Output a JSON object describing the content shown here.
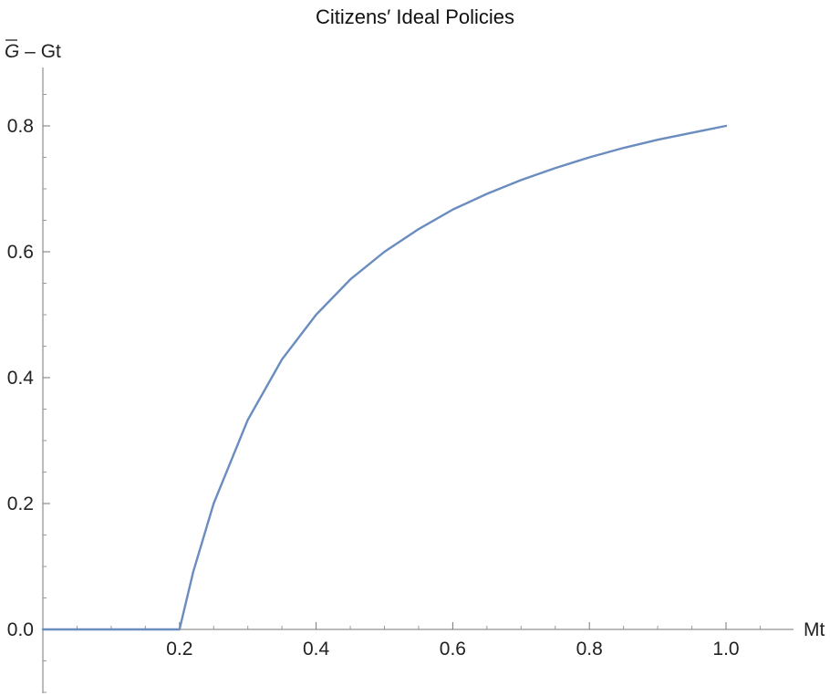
{
  "chart_data": {
    "type": "line",
    "title": "Citizens′ Ideal Policies",
    "xlabel": "Mt",
    "ylabel": {
      "symbol": "G",
      "suffix": " – Gt"
    },
    "xlim": [
      0,
      1.1
    ],
    "ylim": [
      -0.1,
      0.9
    ],
    "x_ticks": [
      0.2,
      0.4,
      0.6,
      0.8,
      1.0
    ],
    "x_tick_labels": [
      "0.2",
      "0.4",
      "0.6",
      "0.8",
      "1.0"
    ],
    "y_ticks": [
      0.0,
      0.2,
      0.4,
      0.6,
      0.8
    ],
    "y_tick_labels": [
      "0.0",
      "0.2",
      "0.4",
      "0.6",
      "0.8"
    ],
    "grid": false,
    "series": [
      {
        "color": "#6a8cbf",
        "x": [
          0.0,
          0.05,
          0.1,
          0.15,
          0.2,
          0.22,
          0.25,
          0.3,
          0.35,
          0.4,
          0.45,
          0.5,
          0.55,
          0.6,
          0.65,
          0.7,
          0.75,
          0.8,
          0.85,
          0.9,
          0.95,
          1.0
        ],
        "y": [
          0.0,
          0.0,
          0.0,
          0.0,
          0.0,
          0.091,
          0.2,
          0.333,
          0.429,
          0.5,
          0.556,
          0.6,
          0.636,
          0.667,
          0.692,
          0.714,
          0.733,
          0.75,
          0.765,
          0.778,
          0.789,
          0.8
        ]
      }
    ]
  }
}
